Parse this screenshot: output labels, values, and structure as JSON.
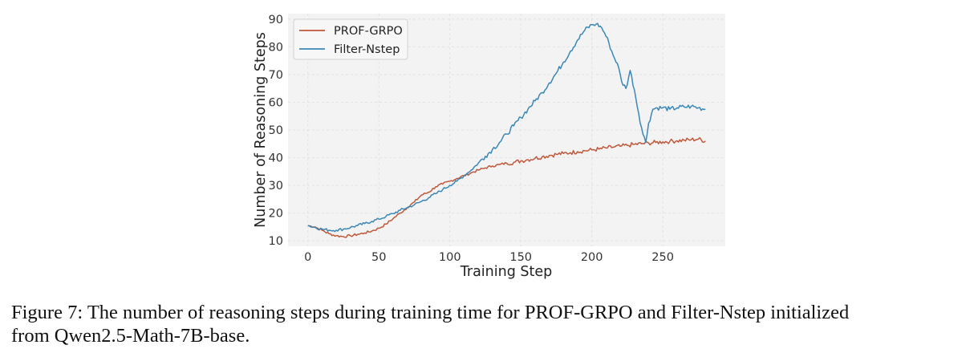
{
  "caption": {
    "line1": "Figure 7: The number of reasoning steps during training time for PROF-GRPO and Filter-Nstep initialized",
    "line2": "from Qwen2.5-Math-7B-base."
  },
  "chart_data": {
    "type": "line",
    "title": "",
    "xlabel": "Training Step",
    "ylabel": "Number of Reasoning Steps",
    "xlim": [
      -14,
      294
    ],
    "ylim": [
      8,
      92
    ],
    "xticks": [
      0,
      50,
      100,
      150,
      200,
      250
    ],
    "yticks": [
      10,
      20,
      30,
      40,
      50,
      60,
      70,
      80,
      90
    ],
    "grid": true,
    "legend": "top-left",
    "series": [
      {
        "name": "PROF-GRPO",
        "color": "#c0583a",
        "x": [
          0,
          5,
          10,
          15,
          20,
          25,
          30,
          35,
          40,
          45,
          50,
          55,
          60,
          65,
          70,
          75,
          80,
          85,
          90,
          95,
          100,
          105,
          110,
          115,
          120,
          125,
          130,
          135,
          140,
          145,
          150,
          155,
          160,
          165,
          170,
          175,
          180,
          185,
          190,
          195,
          200,
          205,
          210,
          215,
          220,
          225,
          230,
          235,
          240,
          245,
          250,
          255,
          260,
          265,
          270,
          275,
          280
        ],
        "y": [
          15.5,
          15,
          13.8,
          12.5,
          11.8,
          11.5,
          11.8,
          12.3,
          12.8,
          13.5,
          14.5,
          16,
          18,
          20,
          22,
          24,
          26.5,
          27.5,
          29.5,
          30.5,
          31.5,
          32.5,
          33.5,
          34.5,
          35.5,
          36.3,
          37,
          37.5,
          38,
          38.3,
          38.8,
          39.3,
          39.8,
          40.3,
          40.8,
          41.2,
          41.5,
          41.8,
          42.2,
          42.5,
          42.8,
          43.1,
          43.5,
          43.8,
          44.1,
          44.4,
          44.8,
          45,
          45.3,
          45.5,
          45.7,
          45.9,
          46.1,
          46.3,
          46.5,
          46.7,
          46
        ]
      },
      {
        "name": "Filter-Nstep",
        "color": "#3b87b5",
        "x": [
          0,
          5,
          10,
          15,
          20,
          25,
          30,
          35,
          40,
          45,
          50,
          55,
          60,
          65,
          70,
          75,
          80,
          85,
          90,
          95,
          100,
          105,
          110,
          115,
          120,
          125,
          130,
          135,
          140,
          145,
          150,
          155,
          160,
          165,
          170,
          175,
          180,
          185,
          190,
          195,
          200,
          203,
          206,
          209,
          212,
          215,
          218,
          221,
          224,
          227,
          230,
          233,
          236,
          238,
          240,
          243,
          246,
          250,
          255,
          260,
          265,
          270,
          275,
          280
        ],
        "y": [
          15.5,
          14.8,
          14.2,
          13.8,
          13.8,
          14.2,
          14.8,
          15.5,
          16.2,
          17,
          17.8,
          18.8,
          19.8,
          21,
          22,
          23,
          24.2,
          25.5,
          27,
          28.5,
          30,
          31.5,
          33.5,
          35.5,
          38,
          40.5,
          43,
          45.5,
          48.5,
          51.5,
          54.5,
          57.5,
          60.5,
          63.5,
          67,
          70.5,
          74.5,
          78.5,
          82.5,
          86,
          88,
          88.2,
          87.5,
          85,
          81.5,
          77,
          74,
          67.5,
          65,
          71.5,
          64.5,
          56,
          48.5,
          45.5,
          52.5,
          57.5,
          58,
          58,
          57.5,
          58,
          58.3,
          58.5,
          58,
          57.5
        ]
      }
    ]
  }
}
